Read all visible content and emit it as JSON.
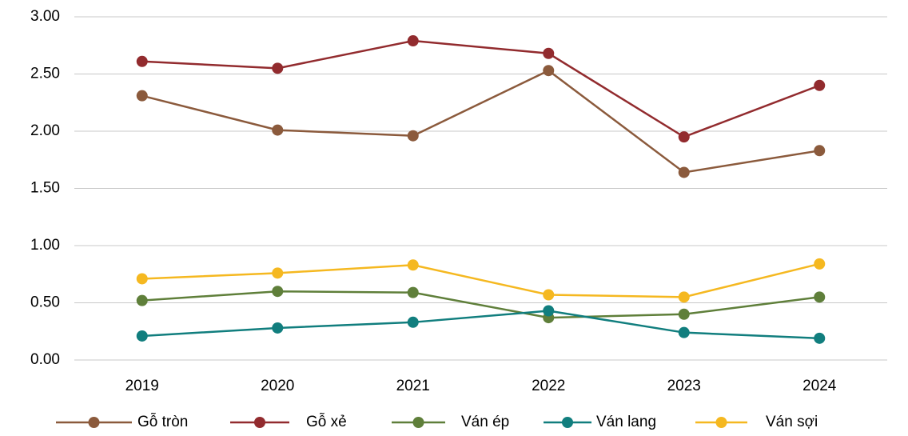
{
  "chart_data": {
    "type": "line",
    "categories": [
      "2019",
      "2020",
      "2021",
      "2022",
      "2023",
      "2024"
    ],
    "series": [
      {
        "name": "Gỗ tròn",
        "color": "#8b5a3c",
        "values": [
          2.31,
          2.01,
          1.96,
          2.53,
          1.64,
          1.83
        ]
      },
      {
        "name": "Gỗ xẻ",
        "color": "#922b2e",
        "values": [
          2.61,
          2.55,
          2.79,
          2.68,
          1.95,
          2.4
        ]
      },
      {
        "name": "Ván ép",
        "color": "#5f7f3a",
        "values": [
          0.52,
          0.6,
          0.59,
          0.37,
          0.4,
          0.55
        ]
      },
      {
        "name": "Ván lang",
        "color": "#117e7e",
        "values": [
          0.21,
          0.28,
          0.33,
          0.43,
          0.24,
          0.19
        ]
      },
      {
        "name": "Ván sợi",
        "color": "#f5b820",
        "values": [
          0.71,
          0.76,
          0.83,
          0.57,
          0.55,
          0.84
        ]
      }
    ],
    "ylim": [
      0,
      3
    ],
    "yticks": [
      {
        "value": 0,
        "label": "0.00"
      },
      {
        "value": 0.5,
        "label": "0.50"
      },
      {
        "value": 1,
        "label": "1.00"
      },
      {
        "value": 1.5,
        "label": "1.50"
      },
      {
        "value": 2,
        "label": "2.00"
      },
      {
        "value": 2.5,
        "label": "2.50"
      },
      {
        "value": 3,
        "label": "3.00"
      }
    ],
    "grid": true,
    "legend": "bottom"
  }
}
